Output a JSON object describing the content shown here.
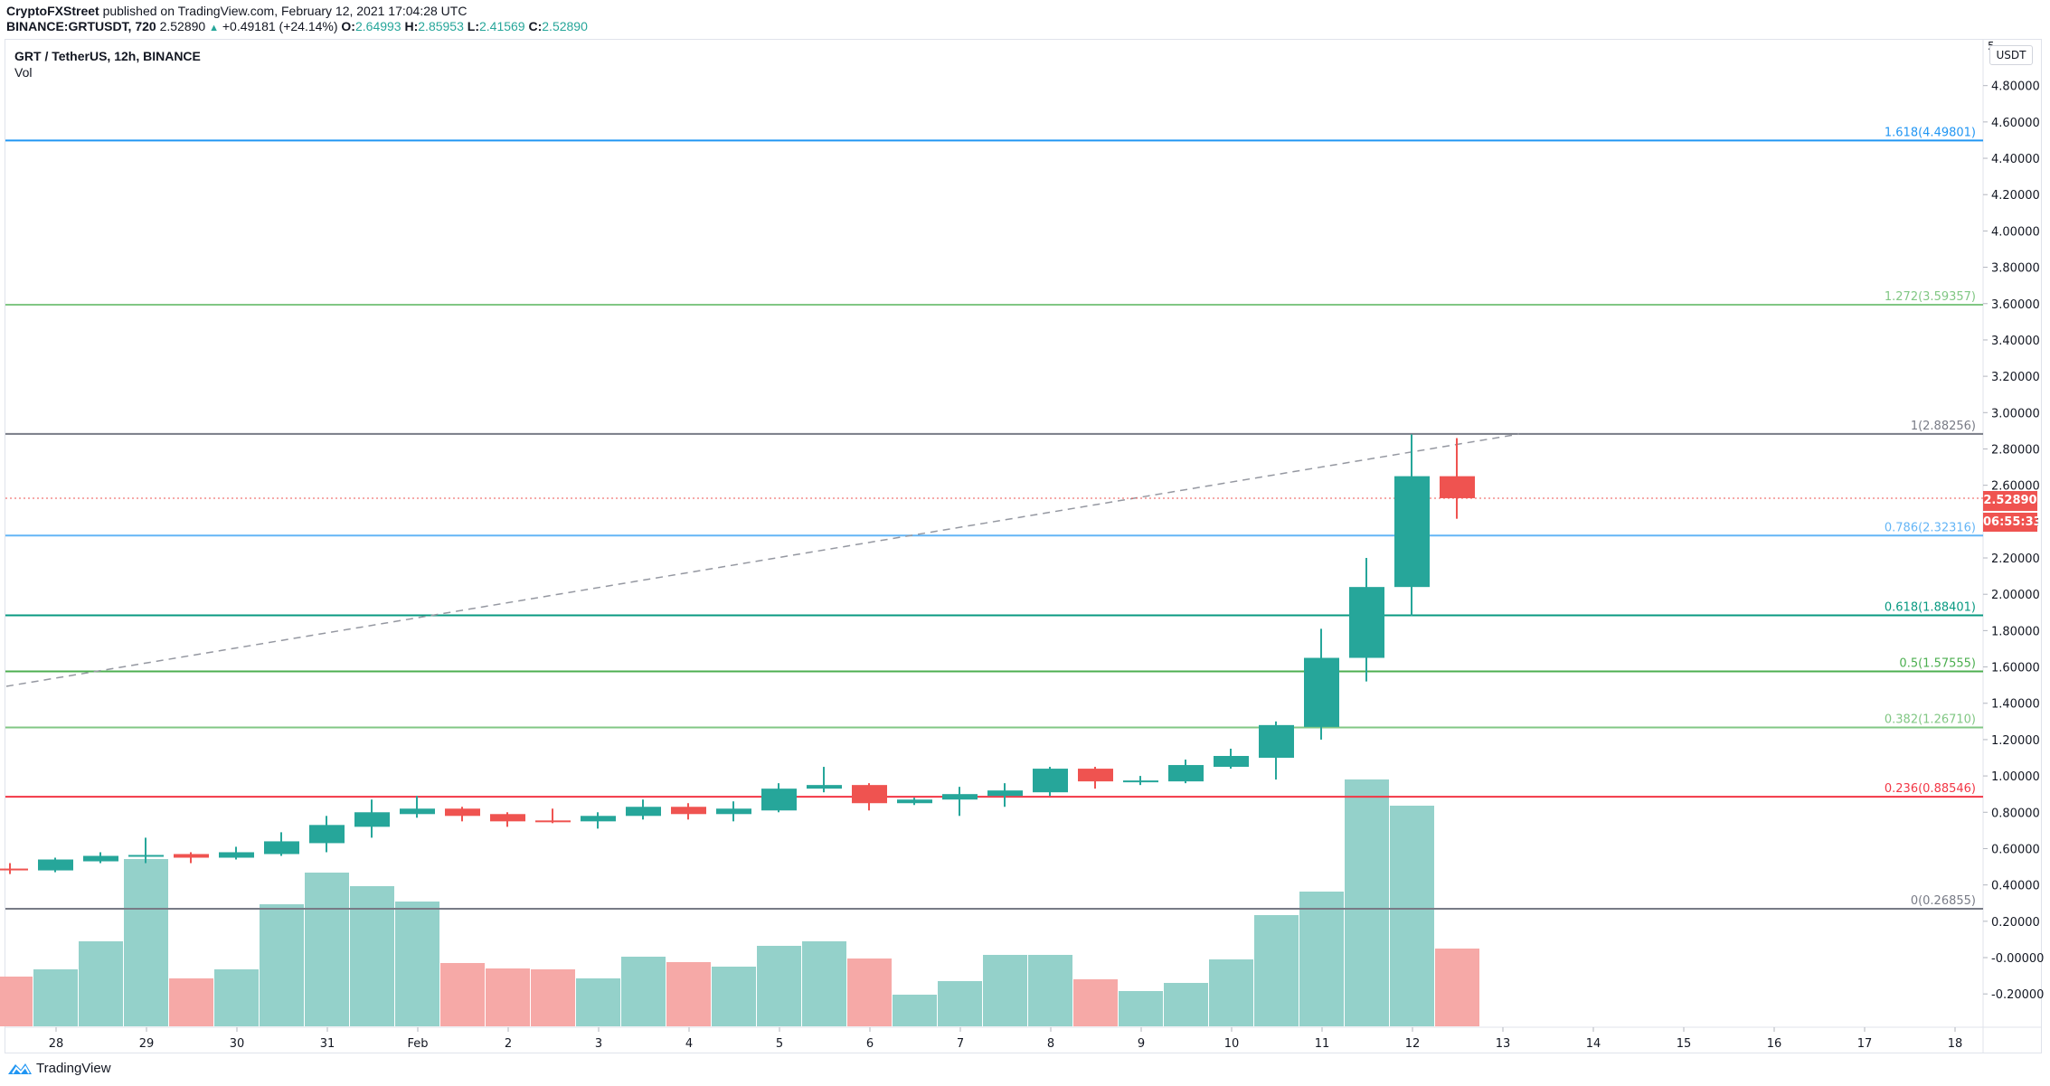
{
  "header": {
    "author": "CryptoFXStreet",
    "published_text": "published on TradingView.com, February 12, 2021 17:04:28 UTC",
    "symbol": "BINANCE:GRTUSDT, 720",
    "last": "2.52890",
    "change": "+0.49181 (+24.14%)",
    "o_label": "O:",
    "o": "2.64993",
    "h_label": "H:",
    "h": "2.85953",
    "l_label": "L:",
    "l": "2.41569",
    "c_label": "C:",
    "c": "2.52890"
  },
  "legend": {
    "title": "GRT / TetherUS, 12h, BINANCE",
    "vol": "Vol"
  },
  "price_axis": {
    "currency": "USDT",
    "top_tick": "5",
    "ticks": [
      "4.80000",
      "4.60000",
      "4.40000",
      "4.20000",
      "4.00000",
      "3.80000",
      "3.60000",
      "3.40000",
      "3.20000",
      "3.00000",
      "2.80000",
      "2.60000",
      "2.40000",
      "2.20000",
      "2.00000",
      "1.80000",
      "1.60000",
      "1.40000",
      "1.20000",
      "1.00000",
      "0.80000",
      "0.60000",
      "0.40000",
      "0.20000",
      "-0.00000",
      "-0.20000"
    ],
    "last_price_label": "2.52890",
    "countdown": "06:55:33"
  },
  "time_axis": {
    "labels": [
      "28",
      "29",
      "30",
      "31",
      "Feb",
      "2",
      "3",
      "4",
      "5",
      "6",
      "7",
      "8",
      "9",
      "10",
      "11",
      "12",
      "13",
      "14",
      "15",
      "16",
      "17",
      "18"
    ]
  },
  "branding": {
    "logo_text": "TradingView"
  },
  "colors": {
    "up": "#26a69a",
    "down": "#ef5350",
    "vol_up": "#94d1ca",
    "vol_down": "#f6a9a7",
    "fib_1618": "#2196f3",
    "fib_1272": "#81c784",
    "fib_1": "#787b86",
    "fib_0786": "#64b5f6",
    "fib_0618": "#089981",
    "fib_05": "#4caf50",
    "fib_0382": "#81c784",
    "fib_0236": "#f23645",
    "fib_0": "#787b86",
    "trendline": "#9598a1"
  },
  "chart_data": {
    "type": "candlestick",
    "title": "GRT / TetherUS, 12h, BINANCE",
    "xlabel": "",
    "ylabel": "USDT",
    "ylim": [
      -0.3,
      5.0
    ],
    "grid": false,
    "x": [
      "Jan 27 12:00",
      "Jan 28 00:00",
      "Jan 28 12:00",
      "Jan 29 00:00",
      "Jan 29 12:00",
      "Jan 30 00:00",
      "Jan 30 12:00",
      "Jan 31 00:00",
      "Jan 31 12:00",
      "Feb 1 00:00",
      "Feb 1 12:00",
      "Feb 2 00:00",
      "Feb 2 12:00",
      "Feb 3 00:00",
      "Feb 3 12:00",
      "Feb 4 00:00",
      "Feb 4 12:00",
      "Feb 5 00:00",
      "Feb 5 12:00",
      "Feb 6 00:00",
      "Feb 6 12:00",
      "Feb 7 00:00",
      "Feb 7 12:00",
      "Feb 8 00:00",
      "Feb 8 12:00",
      "Feb 9 00:00",
      "Feb 9 12:00",
      "Feb 10 00:00",
      "Feb 10 12:00",
      "Feb 11 00:00",
      "Feb 11 12:00",
      "Feb 12 00:00",
      "Feb 12 12:00"
    ],
    "series": [
      {
        "name": "open",
        "values": [
          0.49,
          0.48,
          0.53,
          0.555,
          0.57,
          0.55,
          0.57,
          0.63,
          0.72,
          0.79,
          0.82,
          0.79,
          0.755,
          0.75,
          0.78,
          0.83,
          0.79,
          0.81,
          0.93,
          0.95,
          0.85,
          0.87,
          0.89,
          0.91,
          1.04,
          0.97,
          0.97,
          1.05,
          1.1,
          1.27,
          1.65,
          2.04,
          2.64993
        ]
      },
      {
        "name": "high",
        "values": [
          0.52,
          0.55,
          0.58,
          0.66,
          0.58,
          0.61,
          0.69,
          0.78,
          0.87,
          0.89,
          0.83,
          0.8,
          0.82,
          0.8,
          0.87,
          0.85,
          0.86,
          0.96,
          1.05,
          0.96,
          0.88,
          0.94,
          0.96,
          1.05,
          1.05,
          1.0,
          1.09,
          1.15,
          1.3,
          1.81,
          2.2,
          2.88,
          2.85953
        ]
      },
      {
        "name": "low",
        "values": [
          0.46,
          0.47,
          0.52,
          0.52,
          0.52,
          0.54,
          0.56,
          0.58,
          0.66,
          0.77,
          0.75,
          0.72,
          0.74,
          0.71,
          0.76,
          0.76,
          0.75,
          0.8,
          0.91,
          0.81,
          0.84,
          0.78,
          0.83,
          0.89,
          0.93,
          0.95,
          0.96,
          1.04,
          0.98,
          1.2,
          1.52,
          1.88,
          2.41569
        ]
      },
      {
        "name": "close",
        "values": [
          0.485,
          0.54,
          0.56,
          0.565,
          0.55,
          0.58,
          0.64,
          0.73,
          0.8,
          0.82,
          0.78,
          0.75,
          0.75,
          0.78,
          0.83,
          0.79,
          0.82,
          0.93,
          0.95,
          0.85,
          0.87,
          0.9,
          0.92,
          1.04,
          0.97,
          0.975,
          1.06,
          1.11,
          1.28,
          1.65,
          2.04,
          2.65,
          2.5289
        ]
      },
      {
        "name": "Vol (relative)",
        "values": [
          55,
          63,
          94,
          185,
          53,
          63,
          135,
          170,
          155,
          138,
          70,
          64,
          63,
          53,
          77,
          71,
          66,
          89,
          94,
          75,
          35,
          50,
          79,
          79,
          52,
          39,
          48,
          74,
          123,
          149,
          273,
          244,
          86
        ]
      }
    ],
    "fib_levels": [
      {
        "label": "1.618(4.49801)",
        "ratio": 1.618,
        "price": 4.49801
      },
      {
        "label": "1.272(3.59357)",
        "ratio": 1.272,
        "price": 3.59357
      },
      {
        "label": "1(2.88256)",
        "ratio": 1,
        "price": 2.88256
      },
      {
        "label": "0.786(2.32316)",
        "ratio": 0.786,
        "price": 2.32316
      },
      {
        "label": "0.618(1.88401)",
        "ratio": 0.618,
        "price": 1.88401
      },
      {
        "label": "0.5(1.57555)",
        "ratio": 0.5,
        "price": 1.57555
      },
      {
        "label": "0.382(1.26710)",
        "ratio": 0.382,
        "price": 1.2671
      },
      {
        "label": "0.236(0.88546)",
        "ratio": 0.236,
        "price": 0.88546
      },
      {
        "label": "0(0.26855)",
        "ratio": 0,
        "price": 0.26855
      }
    ],
    "annotations": [
      "dashed trendline from ~1.49 (Jan 27) to ~2.88 (Feb 12)",
      "last price line 2.52890"
    ]
  }
}
